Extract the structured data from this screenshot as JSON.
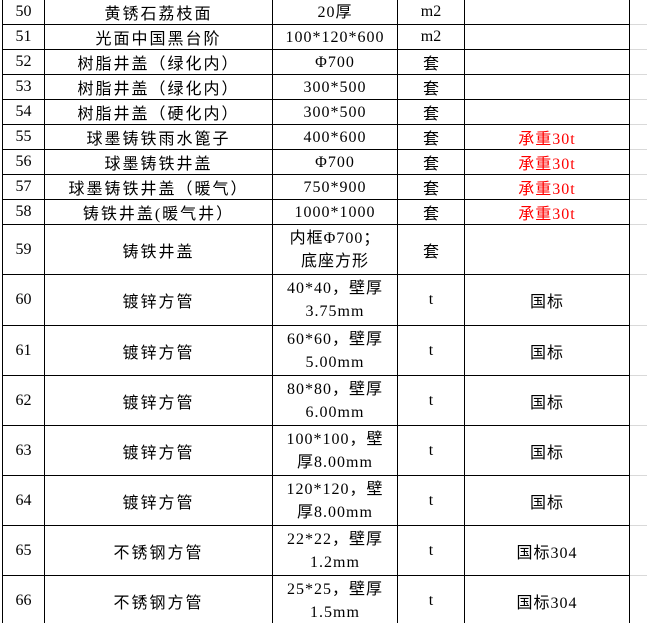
{
  "colors": {
    "text": "#000000",
    "border": "#000000",
    "gridline": "#d9d9d9",
    "remark_warning": "#FF0000"
  },
  "table": {
    "rows": [
      {
        "no": "50",
        "name": "黄锈石荔枝面",
        "spec": "20厚",
        "unit": "m2",
        "remark": ""
      },
      {
        "no": "51",
        "name": "光面中国黑台阶",
        "spec": "100*120*600",
        "unit": "m2",
        "remark": ""
      },
      {
        "no": "52",
        "name": "树脂井盖（绿化内）",
        "spec": "Φ700",
        "unit": "套",
        "remark": ""
      },
      {
        "no": "53",
        "name": "树脂井盖（绿化内）",
        "spec": "300*500",
        "unit": "套",
        "remark": ""
      },
      {
        "no": "54",
        "name": "树脂井盖（硬化内）",
        "spec": "300*500",
        "unit": "套",
        "remark": ""
      },
      {
        "no": "55",
        "name": "球墨铸铁雨水篦子",
        "spec": "400*600",
        "unit": "套",
        "remark": "承重30t",
        "remark_color": "#FF0000"
      },
      {
        "no": "56",
        "name": "球墨铸铁井盖",
        "spec": "Φ700",
        "unit": "套",
        "remark": "承重30t",
        "remark_color": "#FF0000"
      },
      {
        "no": "57",
        "name": "球墨铸铁井盖（暖气）",
        "spec": "750*900",
        "unit": "套",
        "remark": "承重30t",
        "remark_color": "#FF0000"
      },
      {
        "no": "58",
        "name": "铸铁井盖(暖气井）",
        "spec": "1000*1000",
        "unit": "套",
        "remark": "承重30t",
        "remark_color": "#FF0000"
      },
      {
        "no": "59",
        "name": "铸铁井盖",
        "spec": "内框Φ700；\n底座方形",
        "unit": "套",
        "remark": ""
      },
      {
        "no": "60",
        "name": "镀锌方管",
        "spec": "40*40，壁厚\n3.75mm",
        "unit": "t",
        "remark": "国标"
      },
      {
        "no": "61",
        "name": "镀锌方管",
        "spec": "60*60，壁厚\n5.00mm",
        "unit": "t",
        "remark": "国标"
      },
      {
        "no": "62",
        "name": "镀锌方管",
        "spec": "80*80，壁厚\n6.00mm",
        "unit": "t",
        "remark": "国标"
      },
      {
        "no": "63",
        "name": "镀锌方管",
        "spec": "100*100，壁\n厚8.00mm",
        "unit": "t",
        "remark": "国标"
      },
      {
        "no": "64",
        "name": "镀锌方管",
        "spec": "120*120，壁\n厚8.00mm",
        "unit": "t",
        "remark": "国标"
      },
      {
        "no": "65",
        "name": "不锈钢方管",
        "spec": "22*22，壁厚\n1.2mm",
        "unit": "t",
        "remark": "国标304"
      },
      {
        "no": "66",
        "name": "不锈钢方管",
        "spec": "25*25，壁厚\n1.5mm",
        "unit": "t",
        "remark": "国标304"
      }
    ]
  }
}
